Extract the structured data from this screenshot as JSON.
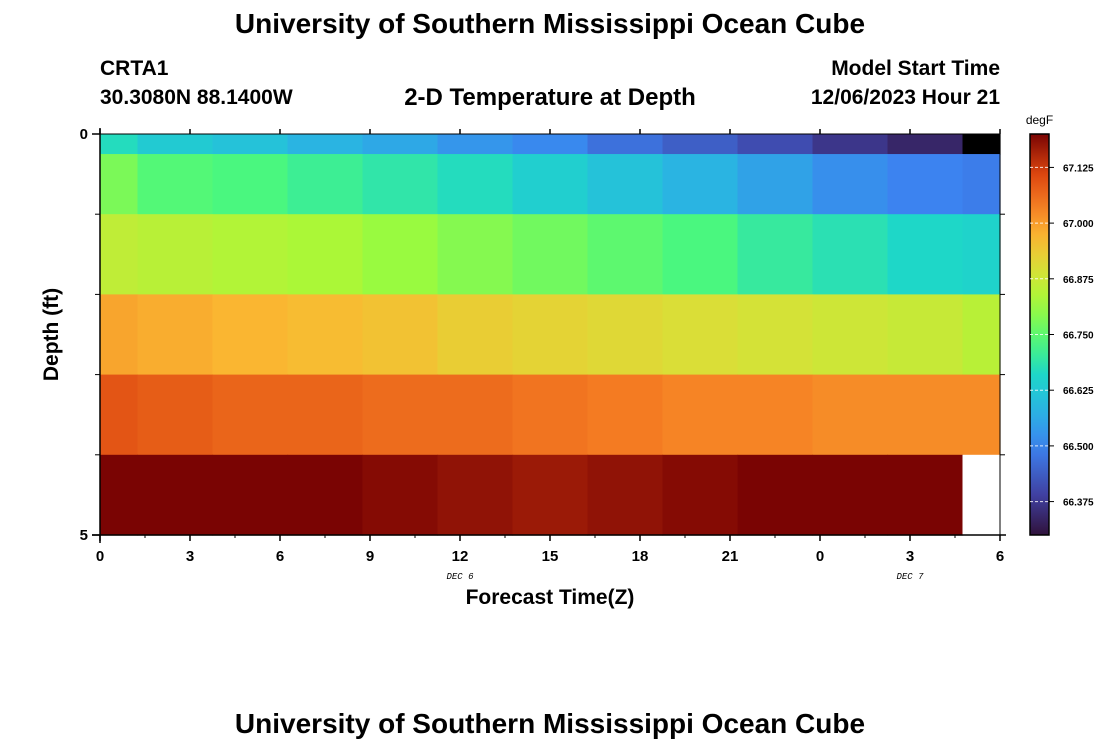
{
  "header": {
    "title": "University of Southern Mississippi Ocean Cube",
    "station": "CRTA1",
    "coordinates": "30.3080N  88.1400W",
    "chart_title": "2-D Temperature at Depth",
    "model_start_label": "Model Start Time",
    "model_start_value": "12/06/2023 Hour 21"
  },
  "footer": {
    "title": "University of Southern Mississippi Ocean Cube"
  },
  "chart_data": {
    "type": "heatmap",
    "title": "2-D Temperature at Depth",
    "xlabel": "Forecast Time(Z)",
    "ylabel": "Depth (ft)",
    "x_ticks": [
      "0",
      "3",
      "6",
      "9",
      "12",
      "15",
      "18",
      "21",
      "0",
      "3",
      "6"
    ],
    "date_labels": [
      {
        "label": "DEC 6",
        "at_hours": 12
      },
      {
        "label": "DEC 7",
        "at_hours": 27
      }
    ],
    "x_range_hours": [
      0,
      30
    ],
    "y_ticks": [
      "0",
      "5"
    ],
    "y_range_ft": [
      0,
      5
    ],
    "colorbar": {
      "units": "degF",
      "ticks": [
        "67.125",
        "67.000",
        "66.875",
        "66.750",
        "66.625",
        "66.500",
        "66.375"
      ],
      "range": [
        66.3,
        67.2
      ]
    },
    "time_hours": [
      0,
      2.5,
      5,
      7.5,
      10,
      12.5,
      15,
      17.5,
      20,
      22.5,
      25,
      27.5,
      30
    ],
    "depth_ft": [
      0,
      0.5,
      1.5,
      2.5,
      3.5,
      4.5
    ],
    "values": [
      [
        66.67,
        66.63,
        66.61,
        66.58,
        66.56,
        66.53,
        66.51,
        66.47,
        66.44,
        66.41,
        66.37,
        66.34,
        null
      ],
      [
        66.78,
        66.74,
        66.73,
        66.71,
        66.69,
        66.67,
        66.64,
        66.61,
        66.58,
        66.55,
        66.52,
        66.5,
        66.49
      ],
      [
        66.86,
        66.85,
        66.84,
        66.83,
        66.81,
        66.79,
        66.77,
        66.75,
        66.73,
        66.7,
        66.68,
        66.66,
        66.65
      ],
      [
        66.99,
        66.98,
        66.97,
        66.96,
        66.95,
        66.93,
        66.92,
        66.91,
        66.9,
        66.89,
        66.88,
        66.87,
        66.85
      ],
      [
        67.09,
        67.08,
        67.07,
        67.07,
        67.06,
        67.06,
        67.05,
        67.04,
        67.03,
        67.03,
        67.02,
        67.02,
        67.02
      ],
      [
        67.24,
        67.22,
        67.21,
        67.2,
        67.19,
        67.18,
        67.17,
        67.18,
        67.19,
        67.2,
        67.21,
        67.22,
        null
      ]
    ]
  },
  "colors": {
    "axis": "#000000",
    "undefined_high": "#000000",
    "undefined_low": "#ffffff"
  }
}
